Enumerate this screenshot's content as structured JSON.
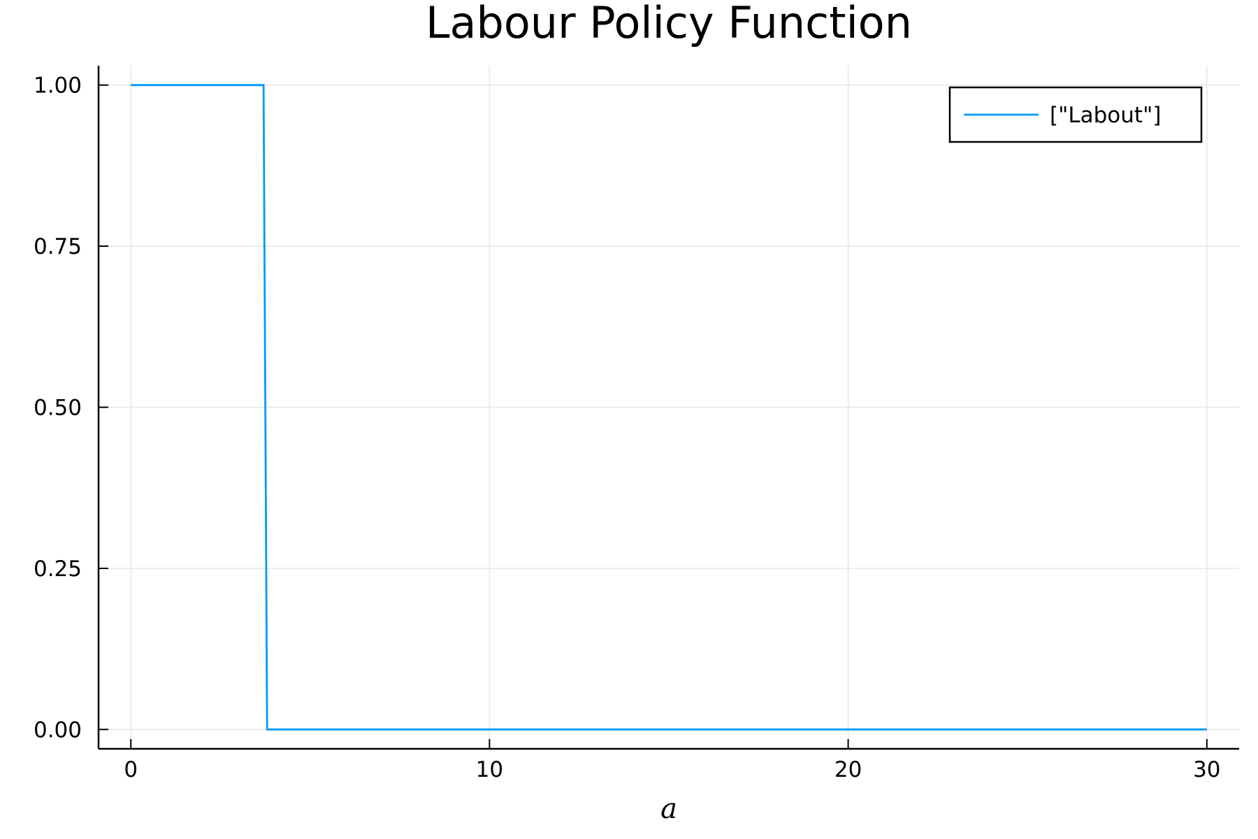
{
  "chart_data": {
    "type": "line",
    "title": "Labour Policy Function",
    "xlabel": "a",
    "ylabel": "",
    "xlim": [
      -0.9,
      30.9
    ],
    "ylim": [
      -0.03,
      1.03
    ],
    "xticks": [
      0,
      10,
      20,
      30
    ],
    "xtick_labels": [
      "0",
      "10",
      "20",
      "30"
    ],
    "yticks": [
      0,
      0.25,
      0.5,
      0.75,
      1.0
    ],
    "ytick_labels": [
      "0.00",
      "0.25",
      "0.50",
      "0.75",
      "1.00"
    ],
    "grid": true,
    "legend_position": "top-right",
    "series": [
      {
        "name": "[\"Labout\"]",
        "color": "#009AF9",
        "x": [
          0,
          3.7,
          3.8,
          30
        ],
        "y": [
          1,
          1,
          0,
          0
        ]
      }
    ]
  }
}
